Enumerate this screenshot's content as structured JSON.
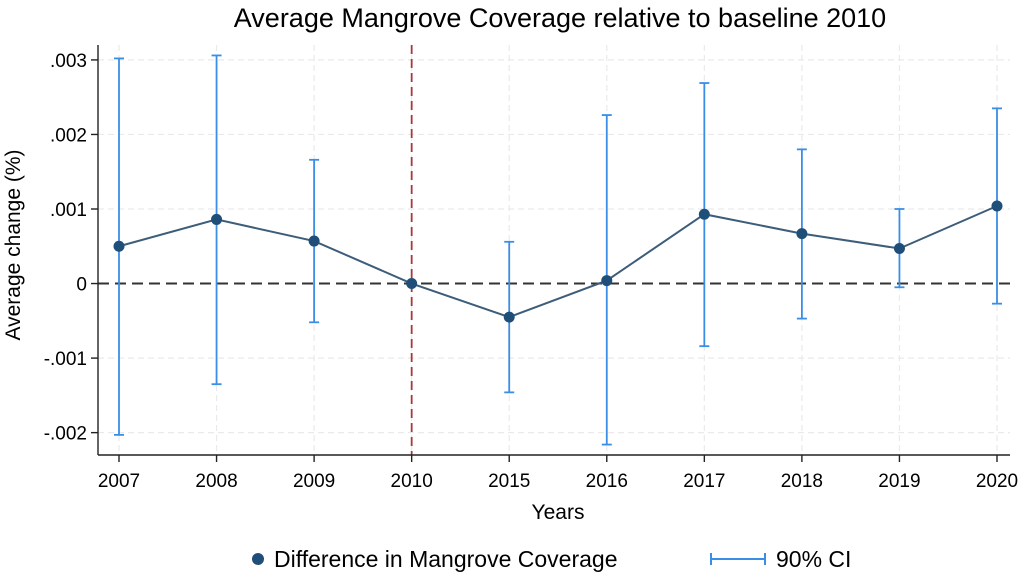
{
  "chart_data": {
    "type": "line",
    "title": "Average Mangrove Coverage relative to baseline 2010",
    "xlabel": "Years",
    "ylabel": "Average change (%)",
    "categories": [
      "2007",
      "2008",
      "2009",
      "2010",
      "2015",
      "2016",
      "2017",
      "2018",
      "2019",
      "2020"
    ],
    "ylim": [
      -0.0023,
      0.0032
    ],
    "yticks": [
      -0.002,
      -0.001,
      0,
      0.001,
      0.002,
      0.003
    ],
    "ytick_labels": [
      "-.002",
      "-.001",
      "0",
      ".001",
      ".002",
      ".003"
    ],
    "grid": true,
    "series": [
      {
        "name": "Difference in Mangrove Coverage",
        "type": "line+markers",
        "color": "#1f4e79",
        "values": [
          0.0005,
          0.00086,
          0.00057,
          0.0,
          -0.00045,
          4e-05,
          0.00093,
          0.00067,
          0.00047,
          0.00104
        ]
      },
      {
        "name": "90% CI",
        "type": "errorbar",
        "color": "#3a8ee6",
        "lower": [
          -0.00203,
          -0.00135,
          -0.00052,
          0.0,
          -0.00146,
          -0.00216,
          -0.00084,
          -0.00047,
          -5e-05,
          -0.00027
        ],
        "upper": [
          0.00302,
          0.00306,
          0.00166,
          0.0,
          0.00056,
          0.00226,
          0.00269,
          0.0018,
          0.001,
          0.00235
        ]
      }
    ],
    "reference_lines": {
      "horizontal_zero": {
        "color": "#333333",
        "style": "dashed"
      },
      "vertical_at": "2010",
      "vertical_color": "#a8383b"
    },
    "legend": {
      "position": "bottom",
      "entries": [
        "Difference in Mangrove Coverage",
        "90% CI"
      ]
    }
  }
}
